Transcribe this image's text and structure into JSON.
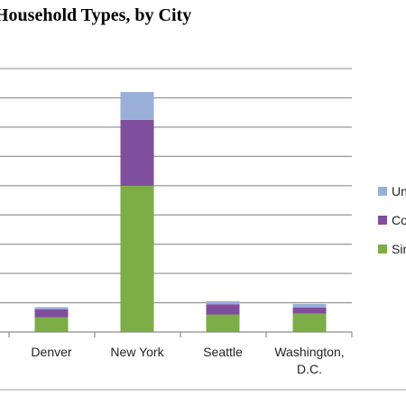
{
  "chart_data": {
    "type": "bar",
    "stacked": true,
    "title": "Household Types, by City",
    "categories": [
      "Denver",
      "New York",
      "Seattle",
      "Washington, D.C."
    ],
    "series": [
      {
        "name": "Single",
        "color": "#7cad47",
        "values": [
          50,
          500,
          60,
          62
        ]
      },
      {
        "name": "Couple",
        "color": "#7f4e9c",
        "values": [
          28,
          225,
          35,
          22
        ]
      },
      {
        "name": "Unmarried",
        "color": "#9aafd8",
        "values": [
          7,
          95,
          10,
          12
        ]
      }
    ],
    "ylim": [
      0,
      900
    ],
    "grid": true,
    "legend_position": "right"
  }
}
